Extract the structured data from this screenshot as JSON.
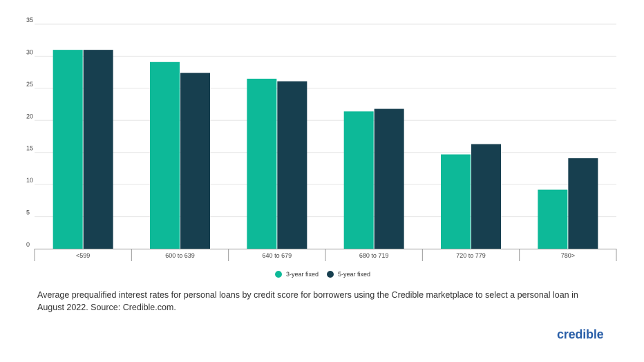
{
  "chart_data": {
    "type": "bar",
    "categories": [
      "<599",
      "600 to 639",
      "640 to 679",
      "680 to 719",
      "720 to 779",
      "780>"
    ],
    "series": [
      {
        "name": "3-year fixed",
        "color": "#0db998",
        "values": [
          31.0,
          29.1,
          26.5,
          21.4,
          14.7,
          9.2
        ]
      },
      {
        "name": "5-year fixed",
        "color": "#173f4f",
        "values": [
          31.0,
          27.4,
          26.1,
          21.8,
          16.3,
          14.1
        ]
      }
    ],
    "yticks": [
      "0",
      "5",
      "10",
      "15",
      "20",
      "25",
      "30",
      "35"
    ],
    "ylim": [
      0,
      35
    ],
    "grid": true,
    "legend_position": "bottom"
  },
  "caption": "Average prequalified interest rates for personal loans by credit score for borrowers using the Credible marketplace to select a personal loan in August 2022. Source: Credible.com.",
  "logo_text": "credible"
}
